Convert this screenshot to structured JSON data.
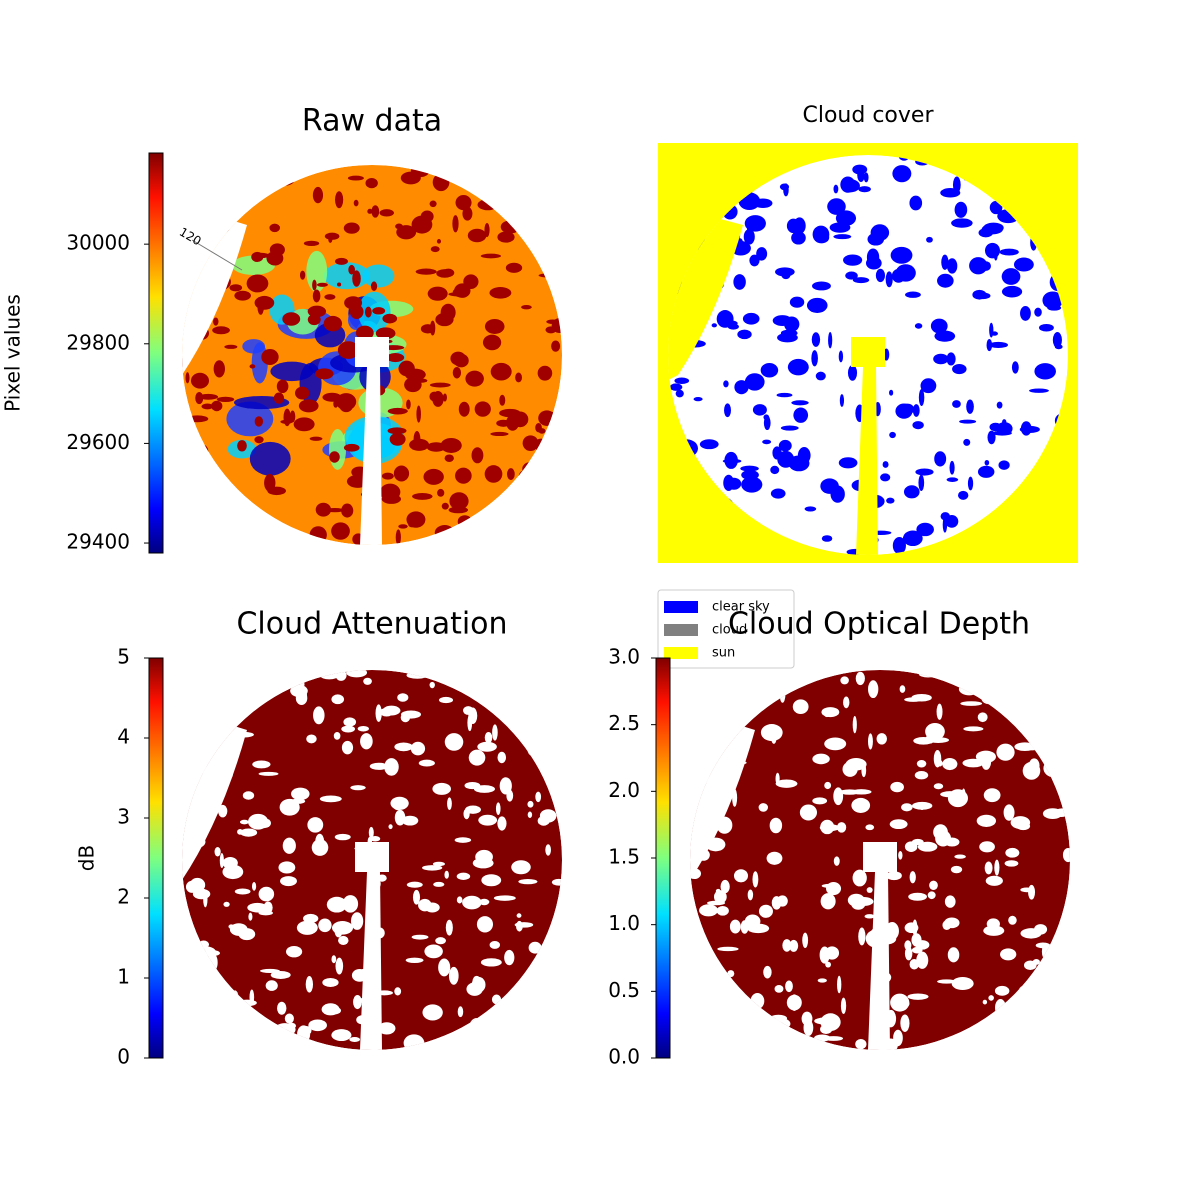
{
  "chart_data": [
    {
      "type": "image",
      "title": "Raw data",
      "colormap": "jet",
      "colorbar": {
        "label": "Pixel values",
        "ylim": [
          29380,
          30183
        ],
        "yticks": [
          29400,
          29600,
          29800,
          30000
        ]
      },
      "annotations": [
        "120"
      ]
    },
    {
      "type": "image",
      "title": "Cloud cover",
      "legend": {
        "position": "lower-left",
        "series": [
          {
            "name": "clear sky",
            "color": "#0000ff"
          },
          {
            "name": "cloud",
            "color": "#808080"
          },
          {
            "name": "sun",
            "color": "#ffff00"
          }
        ]
      }
    },
    {
      "type": "image",
      "title": "Cloud Attenuation",
      "colormap": "jet",
      "colorbar": {
        "label": "dB",
        "ylim": [
          0,
          5
        ],
        "yticks": [
          0,
          1,
          2,
          3,
          4,
          5
        ]
      }
    },
    {
      "type": "image",
      "title": "Cloud Optical Depth",
      "colormap": "jet",
      "colorbar": {
        "ylim": [
          0,
          3
        ],
        "yticks": [
          {
            "value": 0,
            "label": "0.0"
          },
          {
            "value": 0.5,
            "label": "0.5"
          },
          {
            "value": 1,
            "label": "1.0"
          },
          {
            "value": 1.5,
            "label": "1.5"
          },
          {
            "value": 2,
            "label": "2.0"
          },
          {
            "value": 2.5,
            "label": "2.5"
          },
          {
            "value": 3,
            "label": "3.0"
          }
        ]
      }
    }
  ]
}
